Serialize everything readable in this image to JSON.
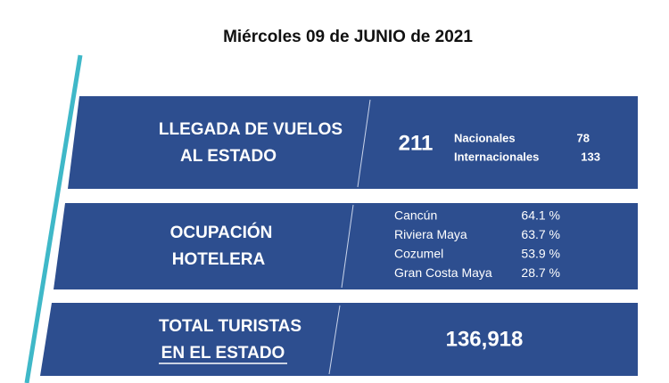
{
  "header": {
    "title": "Miércoles 09 de JUNIO de 2021"
  },
  "panels": [
    {
      "label": [
        "LLEGADA DE VUELOS",
        "AL ESTADO"
      ],
      "total": "211",
      "breakdown": [
        {
          "name": "Nacionales",
          "value": "78"
        },
        {
          "name": "Internacionales",
          "value": "133"
        }
      ]
    },
    {
      "label": [
        "OCUPACIÓN",
        "HOTELERA"
      ],
      "breakdown": [
        {
          "name": "Cancún",
          "value": "64.1 %"
        },
        {
          "name": "Riviera Maya",
          "value": "63.7 %"
        },
        {
          "name": "Cozumel",
          "value": "53.9 %"
        },
        {
          "name": "Gran Costa Maya",
          "value": "28.7 %"
        }
      ]
    },
    {
      "label": [
        "TOTAL TURISTAS",
        "EN EL ESTADO"
      ],
      "total": "136,918"
    }
  ]
}
